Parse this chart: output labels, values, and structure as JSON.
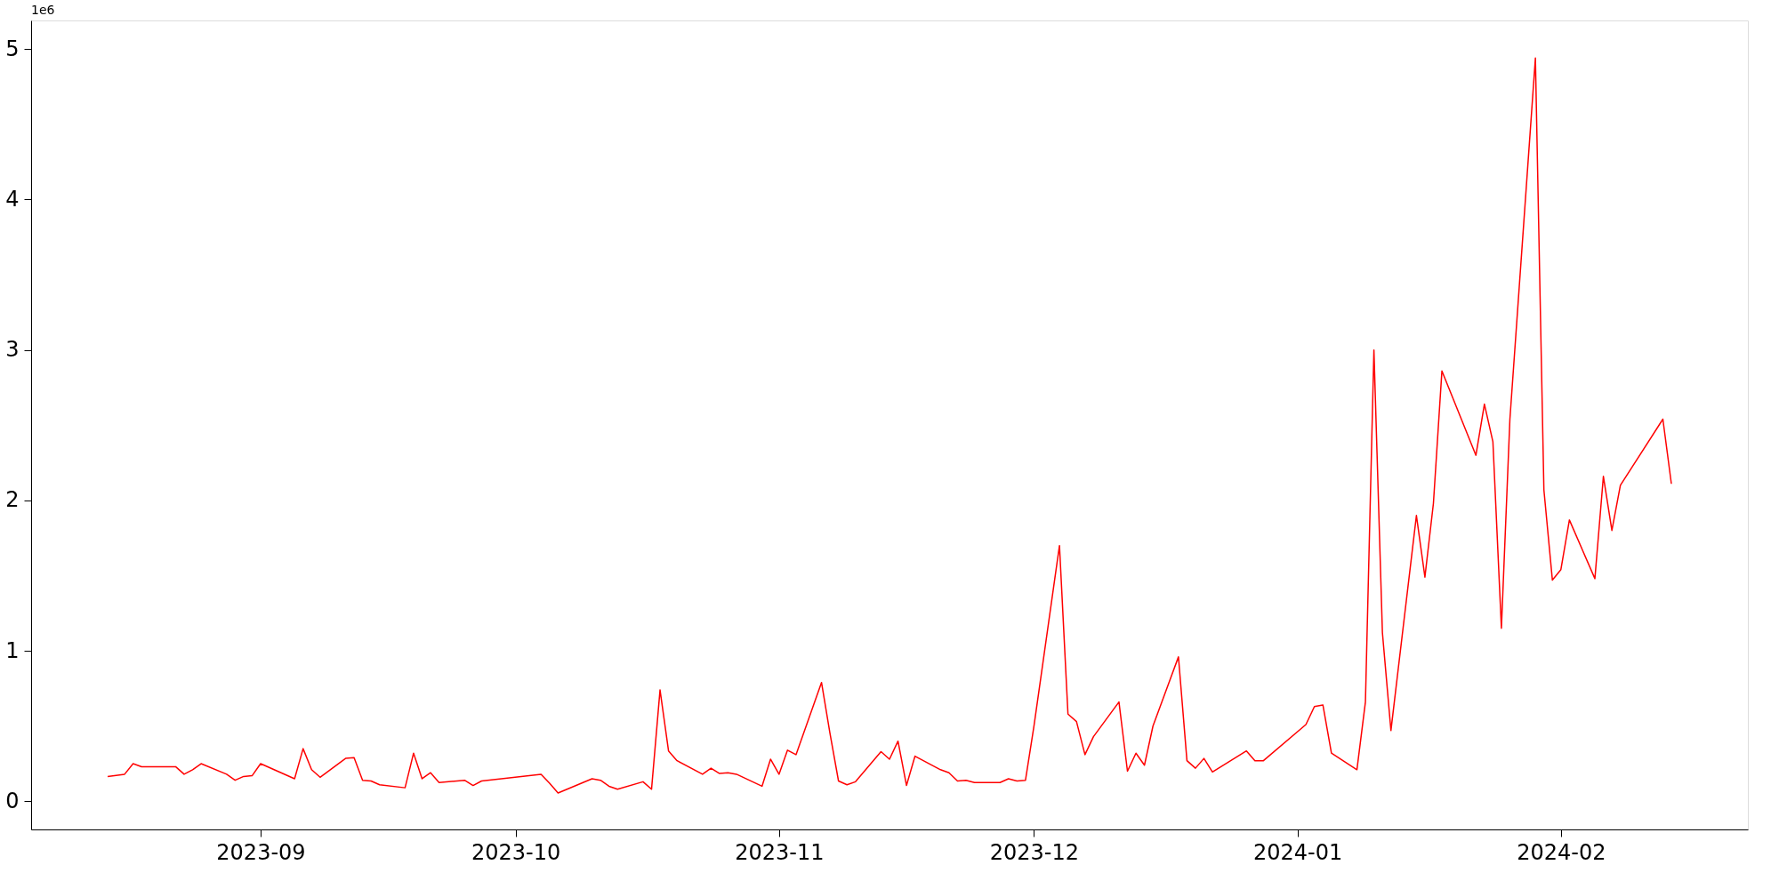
{
  "chart_data": {
    "type": "line",
    "x": [
      "2023-08-14",
      "2023-08-16",
      "2023-08-17",
      "2023-08-18",
      "2023-08-22",
      "2023-08-23",
      "2023-08-24",
      "2023-08-25",
      "2023-08-28",
      "2023-08-29",
      "2023-08-30",
      "2023-08-31",
      "2023-09-01",
      "2023-09-05",
      "2023-09-06",
      "2023-09-07",
      "2023-09-08",
      "2023-09-11",
      "2023-09-12",
      "2023-09-13",
      "2023-09-14",
      "2023-09-15",
      "2023-09-18",
      "2023-09-19",
      "2023-09-20",
      "2023-09-21",
      "2023-09-22",
      "2023-09-25",
      "2023-09-26",
      "2023-09-27",
      "2023-10-04",
      "2023-10-05",
      "2023-10-06",
      "2023-10-10",
      "2023-10-11",
      "2023-10-12",
      "2023-10-13",
      "2023-10-16",
      "2023-10-17",
      "2023-10-18",
      "2023-10-19",
      "2023-10-20",
      "2023-10-23",
      "2023-10-24",
      "2023-10-25",
      "2023-10-26",
      "2023-10-27",
      "2023-10-30",
      "2023-10-31",
      "2023-11-01",
      "2023-11-02",
      "2023-11-03",
      "2023-11-06",
      "2023-11-07",
      "2023-11-08",
      "2023-11-09",
      "2023-11-10",
      "2023-11-13",
      "2023-11-14",
      "2023-11-15",
      "2023-11-16",
      "2023-11-17",
      "2023-11-20",
      "2023-11-21",
      "2023-11-22",
      "2023-11-23",
      "2023-11-24",
      "2023-11-27",
      "2023-11-28",
      "2023-11-29",
      "2023-11-30",
      "2023-12-01",
      "2023-12-04",
      "2023-12-05",
      "2023-12-06",
      "2023-12-07",
      "2023-12-08",
      "2023-12-11",
      "2023-12-12",
      "2023-12-13",
      "2023-12-14",
      "2023-12-15",
      "2023-12-18",
      "2023-12-19",
      "2023-12-20",
      "2023-12-21",
      "2023-12-22",
      "2023-12-26",
      "2023-12-27",
      "2023-12-28",
      "2024-01-02",
      "2024-01-03",
      "2024-01-04",
      "2024-01-05",
      "2024-01-08",
      "2024-01-09",
      "2024-01-10",
      "2024-01-11",
      "2024-01-12",
      "2024-01-15",
      "2024-01-16",
      "2024-01-17",
      "2024-01-18",
      "2024-01-22",
      "2024-01-23",
      "2024-01-24",
      "2024-01-25",
      "2024-01-26",
      "2024-01-29",
      "2024-01-30",
      "2024-01-31",
      "2024-02-01",
      "2024-02-02",
      "2024-02-05",
      "2024-02-06",
      "2024-02-07",
      "2024-02-08",
      "2024-02-13",
      "2024-02-14"
    ],
    "series": [
      {
        "color": "#ff0000",
        "values": [
          0.165,
          0.18,
          0.25,
          0.23,
          0.23,
          0.18,
          0.21,
          0.25,
          0.18,
          0.14,
          0.165,
          0.17,
          0.25,
          0.15,
          0.35,
          0.21,
          0.16,
          0.285,
          0.29,
          0.14,
          0.135,
          0.11,
          0.09,
          0.32,
          0.15,
          0.19,
          0.125,
          0.14,
          0.105,
          0.135,
          0.18,
          0.12,
          0.055,
          0.15,
          0.14,
          0.1,
          0.08,
          0.13,
          0.08,
          0.74,
          0.335,
          0.27,
          0.18,
          0.22,
          0.185,
          0.19,
          0.18,
          0.1,
          0.28,
          0.18,
          0.34,
          0.31,
          0.79,
          0.45,
          0.135,
          0.11,
          0.13,
          0.33,
          0.28,
          0.4,
          0.105,
          0.3,
          0.21,
          0.19,
          0.135,
          0.14,
          0.125,
          0.125,
          0.15,
          0.135,
          0.14,
          0.5,
          1.7,
          0.58,
          0.53,
          0.31,
          0.43,
          0.66,
          0.2,
          0.32,
          0.24,
          0.5,
          0.96,
          0.27,
          0.22,
          0.285,
          0.195,
          0.335,
          0.27,
          0.27,
          0.51,
          0.63,
          0.64,
          0.32,
          0.21,
          0.66,
          3.0,
          1.12,
          0.47,
          1.9,
          1.49,
          1.98,
          2.86,
          2.3,
          2.64,
          2.39,
          1.15,
          2.54,
          4.94,
          2.07,
          1.47,
          1.54,
          1.87,
          1.48,
          2.16,
          1.8,
          2.1,
          2.54,
          2.11
        ]
      }
    ],
    "xlim": [
      "2023-08-05",
      "2024-02-23"
    ],
    "xticks": [
      {
        "value": "2023-09-01",
        "label": "2023-09"
      },
      {
        "value": "2023-10-01",
        "label": "2023-10"
      },
      {
        "value": "2023-11-01",
        "label": "2023-11"
      },
      {
        "value": "2023-12-01",
        "label": "2023-12"
      },
      {
        "value": "2024-01-01",
        "label": "2024-01"
      },
      {
        "value": "2024-02-01",
        "label": "2024-02"
      }
    ],
    "ylim": [
      -0.187,
      5.19
    ],
    "yticks": [
      0,
      1,
      2,
      3,
      4,
      5
    ],
    "annotations": [
      "1e6"
    ],
    "grid": false,
    "marker": "none",
    "line_style": "solid"
  }
}
